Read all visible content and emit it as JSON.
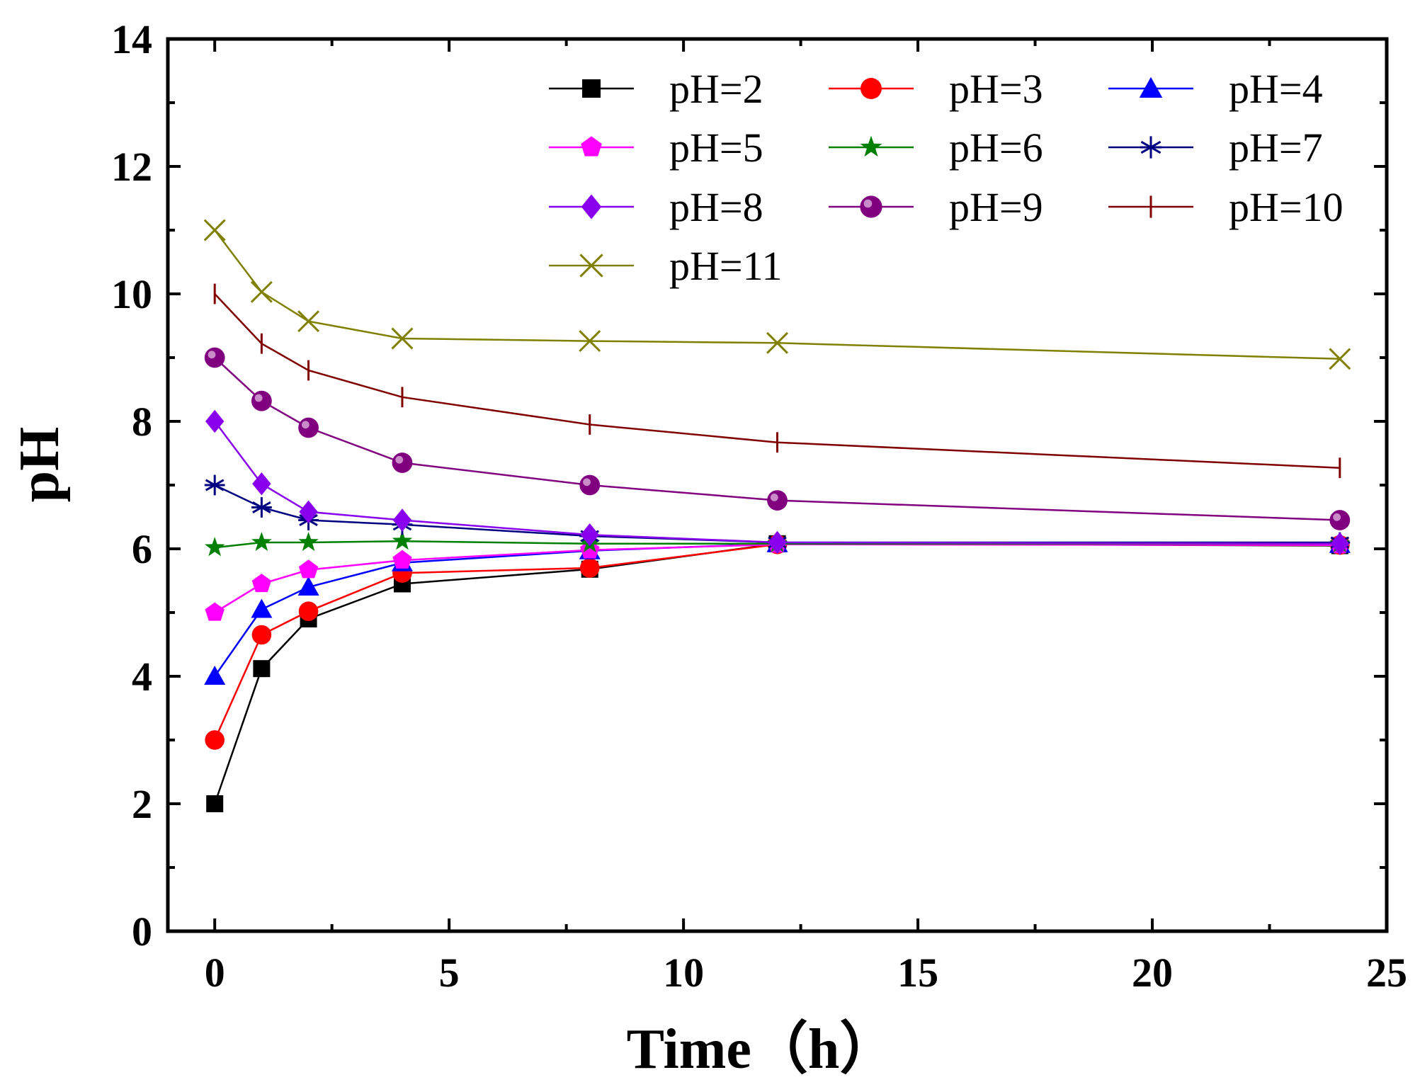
{
  "chart_data": {
    "type": "line",
    "title": "",
    "xlabel": "Time（h）",
    "ylabel": "pH",
    "xlim": [
      -1,
      25
    ],
    "ylim": [
      0,
      14
    ],
    "xticks": [
      0,
      5,
      10,
      15,
      20,
      25
    ],
    "yticks": [
      0,
      2,
      4,
      6,
      8,
      10,
      12,
      14
    ],
    "x": [
      0,
      1,
      2,
      4,
      8,
      12,
      24
    ],
    "legend_position": "top-right",
    "grid": false,
    "series": [
      {
        "name": "pH=2",
        "color": "#000000",
        "marker": "square",
        "values": [
          2.0,
          4.12,
          4.9,
          5.45,
          5.68,
          6.08,
          6.05
        ]
      },
      {
        "name": "pH=3",
        "color": "#ff0000",
        "marker": "circle",
        "values": [
          3.0,
          4.65,
          5.02,
          5.62,
          5.7,
          6.07,
          6.06
        ]
      },
      {
        "name": "pH=4",
        "color": "#0000ff",
        "marker": "triangle",
        "values": [
          4.0,
          5.05,
          5.4,
          5.78,
          5.97,
          6.08,
          6.07
        ]
      },
      {
        "name": "pH=5",
        "color": "#ff00ff",
        "marker": "pentagon",
        "values": [
          5.0,
          5.45,
          5.67,
          5.82,
          5.98,
          6.07,
          6.06
        ]
      },
      {
        "name": "pH=6",
        "color": "#008000",
        "marker": "star",
        "values": [
          6.02,
          6.1,
          6.1,
          6.12,
          6.08,
          6.08,
          6.08
        ]
      },
      {
        "name": "pH=7",
        "color": "#000080",
        "marker": "asterisk",
        "values": [
          7.0,
          6.65,
          6.45,
          6.38,
          6.2,
          6.1,
          6.1
        ]
      },
      {
        "name": "pH=8",
        "color": "#8800ee",
        "marker": "diamond",
        "values": [
          8.0,
          7.02,
          6.58,
          6.45,
          6.22,
          6.1,
          6.08
        ]
      },
      {
        "name": "pH=9",
        "color": "#800080",
        "marker": "sphere",
        "values": [
          9.0,
          8.32,
          7.9,
          7.35,
          7.0,
          6.76,
          6.45
        ]
      },
      {
        "name": "pH=10",
        "color": "#800000",
        "marker": "vline",
        "values": [
          10.0,
          9.22,
          8.8,
          8.38,
          7.95,
          7.67,
          7.27
        ]
      },
      {
        "name": "pH=11",
        "color": "#808000",
        "marker": "x",
        "values": [
          11.0,
          10.03,
          9.57,
          9.3,
          9.26,
          9.23,
          8.98
        ]
      }
    ]
  }
}
